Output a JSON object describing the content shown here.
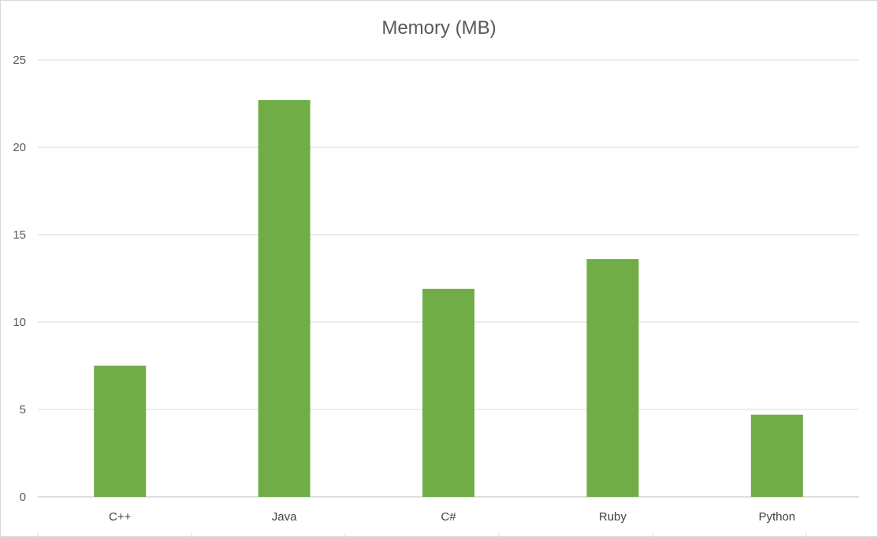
{
  "chart_data": {
    "type": "bar",
    "title": "Memory (MB)",
    "xlabel": "",
    "ylabel": "",
    "categories": [
      "C++",
      "Java",
      "C#",
      "Ruby",
      "Python"
    ],
    "values": [
      7.5,
      22.7,
      11.9,
      13.6,
      4.7
    ],
    "ylim": [
      0,
      25
    ],
    "yticks": [
      "0",
      "5",
      "10",
      "15",
      "20",
      "25"
    ],
    "grid": true,
    "legend": "none",
    "colors": {
      "bar": "#70ad47",
      "grid": "#d9d9d9",
      "axis": "#bfbfbf"
    }
  }
}
